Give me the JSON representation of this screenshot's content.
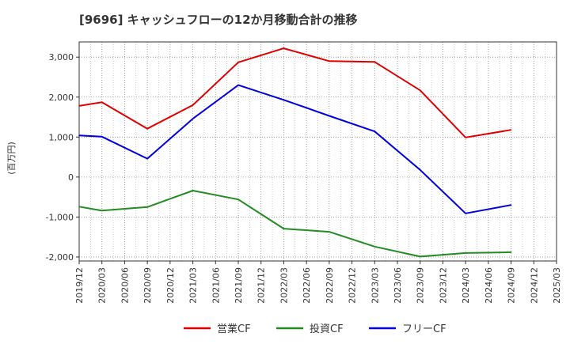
{
  "chart_data": {
    "type": "line",
    "title": "[9696]  キャッシュフローの12か月移動合計の推移",
    "ylabel": "(百万円)",
    "xlabel": "",
    "ylim": [
      -2100,
      3380
    ],
    "yticks": [
      -2000,
      -1000,
      0,
      1000,
      2000,
      3000
    ],
    "ytick_labels": [
      "-2,000",
      "-1,000",
      "0",
      "1,000",
      "2,000",
      "3,000"
    ],
    "x_categories": [
      "2019/12",
      "2020/03",
      "2020/06",
      "2020/09",
      "2020/12",
      "2021/03",
      "2021/06",
      "2021/09",
      "2021/12",
      "2022/03",
      "2022/06",
      "2022/09",
      "2022/12",
      "2023/03",
      "2023/06",
      "2023/09",
      "2023/12",
      "2024/03",
      "2024/06",
      "2024/09",
      "2024/12",
      "2025/03"
    ],
    "grid": true,
    "legend_position": "bottom",
    "series": [
      {
        "name": "営業CF",
        "color": "#e00000",
        "points": [
          {
            "x": "2019/12",
            "y": 1780
          },
          {
            "x": "2020/03",
            "y": 1870
          },
          {
            "x": "2020/09",
            "y": 1210
          },
          {
            "x": "2021/03",
            "y": 1800
          },
          {
            "x": "2021/09",
            "y": 2870
          },
          {
            "x": "2022/03",
            "y": 3220
          },
          {
            "x": "2022/09",
            "y": 2900
          },
          {
            "x": "2023/03",
            "y": 2880
          },
          {
            "x": "2023/09",
            "y": 2170
          },
          {
            "x": "2024/03",
            "y": 990
          },
          {
            "x": "2024/09",
            "y": 1180
          }
        ]
      },
      {
        "name": "投資CF",
        "color": "#228b22",
        "points": [
          {
            "x": "2019/12",
            "y": -740
          },
          {
            "x": "2020/03",
            "y": -840
          },
          {
            "x": "2020/09",
            "y": -750
          },
          {
            "x": "2021/03",
            "y": -340
          },
          {
            "x": "2021/09",
            "y": -560
          },
          {
            "x": "2022/03",
            "y": -1290
          },
          {
            "x": "2022/09",
            "y": -1370
          },
          {
            "x": "2023/03",
            "y": -1740
          },
          {
            "x": "2023/09",
            "y": -1990
          },
          {
            "x": "2024/03",
            "y": -1900
          },
          {
            "x": "2024/09",
            "y": -1880
          }
        ]
      },
      {
        "name": "フリーCF",
        "color": "#0000dd",
        "points": [
          {
            "x": "2019/12",
            "y": 1040
          },
          {
            "x": "2020/03",
            "y": 1010
          },
          {
            "x": "2020/09",
            "y": 460
          },
          {
            "x": "2021/03",
            "y": 1460
          },
          {
            "x": "2021/09",
            "y": 2300
          },
          {
            "x": "2022/03",
            "y": 1930
          },
          {
            "x": "2022/09",
            "y": 1530
          },
          {
            "x": "2023/03",
            "y": 1140
          },
          {
            "x": "2023/09",
            "y": 180
          },
          {
            "x": "2024/03",
            "y": -910
          },
          {
            "x": "2024/09",
            "y": -700
          }
        ]
      }
    ]
  }
}
